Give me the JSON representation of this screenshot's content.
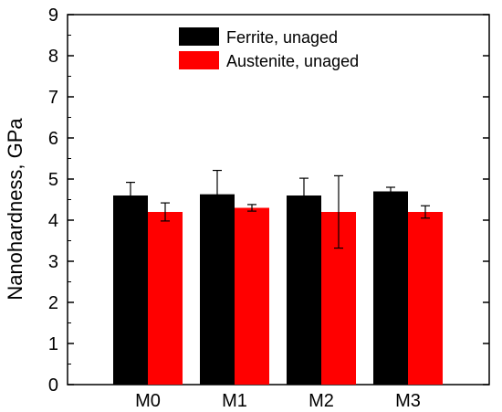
{
  "chart_data": {
    "type": "bar",
    "ylabel": "Nanohardness, GPa",
    "xlabel": "",
    "title": "",
    "ylim": [
      0,
      9
    ],
    "yticks": [
      0,
      1,
      2,
      3,
      4,
      5,
      6,
      7,
      8,
      9
    ],
    "categories": [
      "M0",
      "M1",
      "M2",
      "M3"
    ],
    "series": [
      {
        "name": "Ferrite, unaged",
        "color": "#000000",
        "values": [
          4.6,
          4.63,
          4.6,
          4.7
        ],
        "errors": [
          0.32,
          0.58,
          0.42,
          0.1
        ]
      },
      {
        "name": "Austenite, unaged",
        "color": "#ff0000",
        "values": [
          4.2,
          4.3,
          4.2,
          4.2
        ],
        "errors": [
          0.22,
          0.08,
          0.88,
          0.15
        ]
      }
    ],
    "legend_position": "top-center",
    "grid": false
  }
}
